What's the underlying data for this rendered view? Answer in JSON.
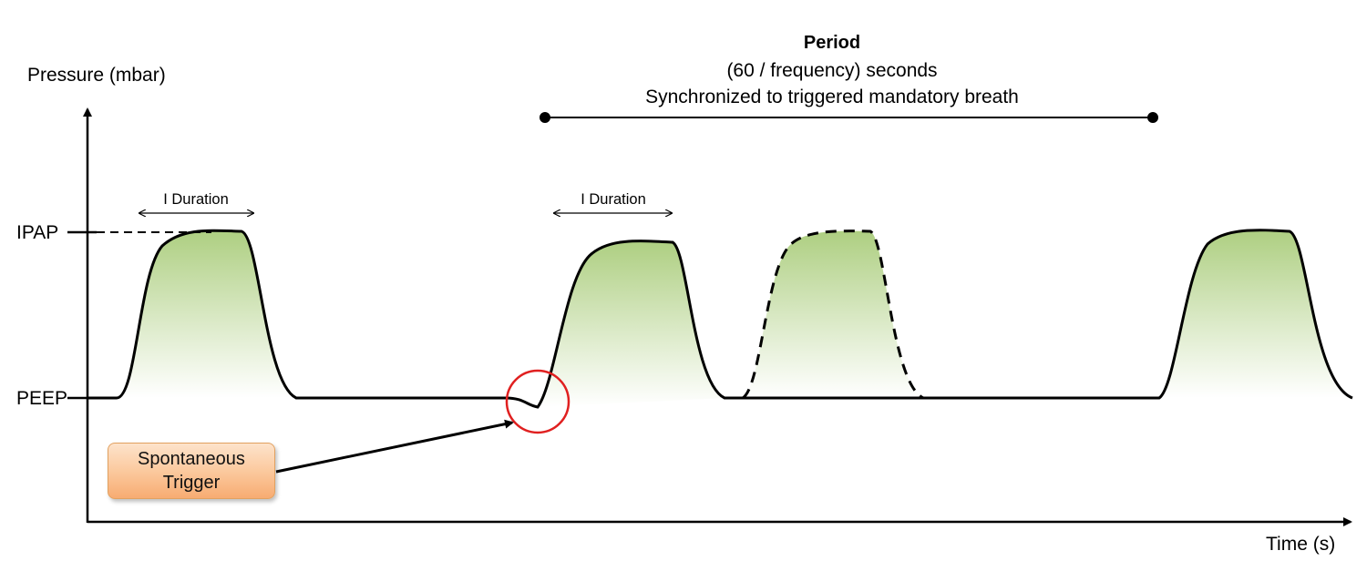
{
  "axes": {
    "y_label": "Pressure (mbar)",
    "x_label": "Time (s)"
  },
  "levels": {
    "ipap": "IPAP",
    "peep": "PEEP"
  },
  "period": {
    "title": "Period",
    "formula": "(60 / frequency) seconds",
    "description": "Synchronized to triggered mandatory breath"
  },
  "i_duration": {
    "first": "I Duration",
    "second": "I Duration"
  },
  "trigger": {
    "label": "Spontaneous\nTrigger",
    "highlight_color": "#e02020"
  },
  "colors": {
    "breath_fill_top": "#a9cc7a",
    "breath_fill_bottom": "#ffffff",
    "waveform": "#000000",
    "trigger_box": "#fbc79a",
    "trigger_border": "#e2a160"
  }
}
